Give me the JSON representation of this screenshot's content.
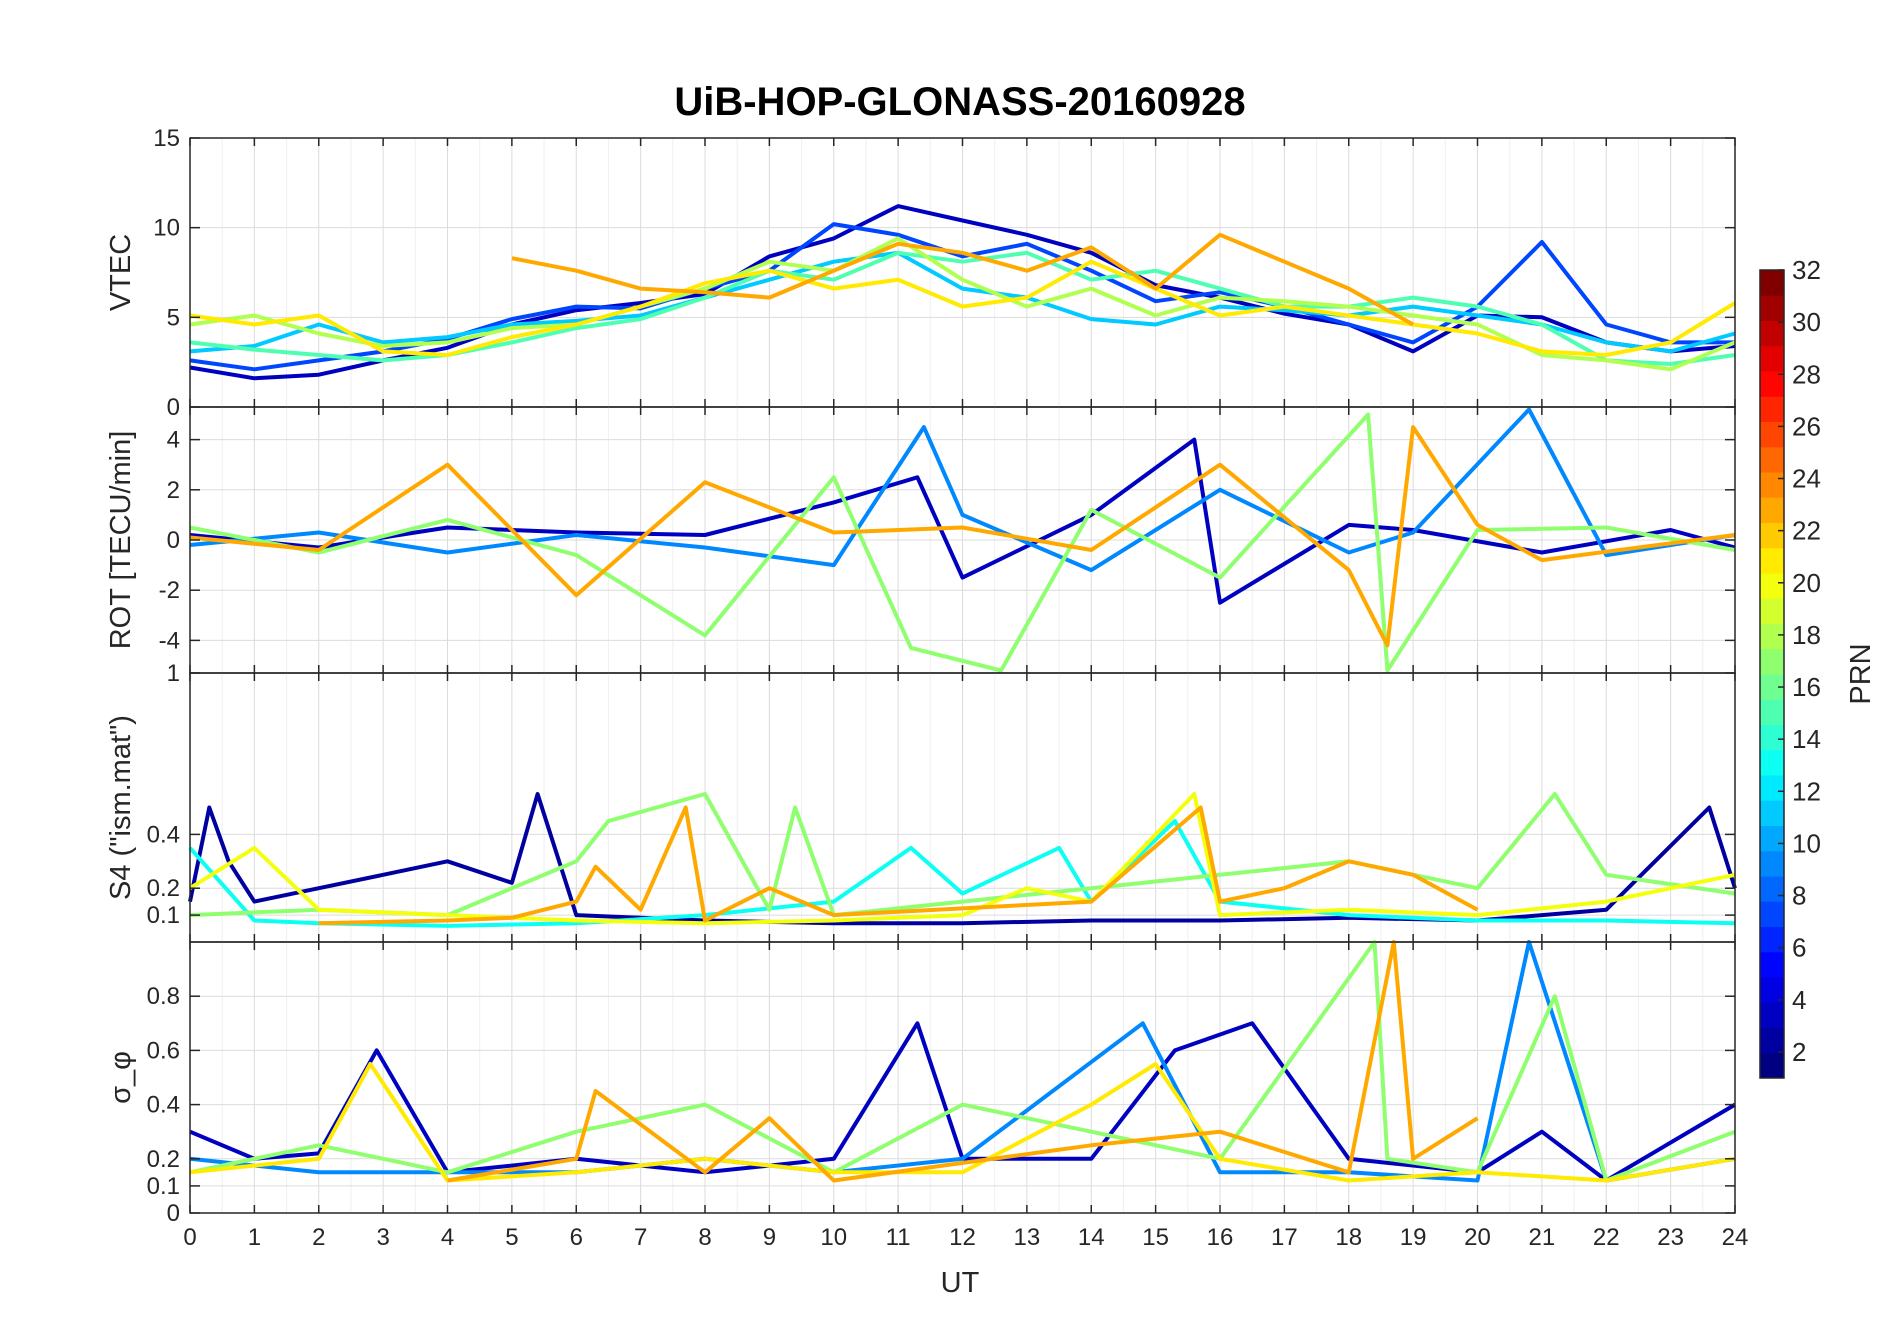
{
  "figure": {
    "title": "UiB-HOP-GLONASS-20160928",
    "xlabel": "UT",
    "xticks": [
      "0",
      "1",
      "2",
      "3",
      "4",
      "5",
      "6",
      "7",
      "8",
      "9",
      "10",
      "11",
      "12",
      "13",
      "14",
      "15",
      "16",
      "17",
      "18",
      "19",
      "20",
      "21",
      "22",
      "23",
      "24"
    ]
  },
  "colorbar": {
    "label": "PRN",
    "range": [
      1,
      32
    ],
    "ticks": [
      "2",
      "4",
      "6",
      "8",
      "10",
      "12",
      "14",
      "16",
      "18",
      "20",
      "22",
      "24",
      "26",
      "28",
      "30",
      "32"
    ],
    "colormap": "jet"
  },
  "chart_data": [
    {
      "type": "line",
      "ylabel": "VTEC",
      "xlim": [
        0,
        24
      ],
      "ylim": [
        0,
        15
      ],
      "yticks": [
        "0",
        "5",
        "10",
        "15"
      ],
      "grid": true,
      "note_series": "one trace per GLONASS PRN, colored by PRN",
      "series": [
        {
          "prn": 3,
          "x": [
            0,
            1,
            2,
            3,
            4,
            5,
            6,
            7,
            8,
            9,
            10,
            11,
            12,
            13,
            14,
            15,
            16,
            17,
            18,
            19,
            20,
            21,
            22,
            23,
            24
          ],
          "y": [
            2.2,
            1.6,
            1.8,
            2.6,
            3.3,
            4.6,
            5.4,
            5.8,
            6.3,
            8.4,
            9.4,
            11.2,
            10.4,
            9.6,
            8.6,
            6.8,
            6.1,
            5.2,
            4.6,
            3.1,
            5.1,
            5.0,
            3.6,
            3.1,
            3.4
          ]
        },
        {
          "prn": 7,
          "x": [
            0,
            1,
            2,
            3,
            4,
            5,
            6,
            7,
            8,
            9,
            10,
            11,
            12,
            13,
            14,
            15,
            16,
            17,
            18,
            19,
            20,
            21,
            22,
            23,
            24
          ],
          "y": [
            2.6,
            2.1,
            2.6,
            3.1,
            3.8,
            4.9,
            5.6,
            5.5,
            6.6,
            7.6,
            10.2,
            9.6,
            8.4,
            9.1,
            7.6,
            5.9,
            6.4,
            5.6,
            4.6,
            3.6,
            5.6,
            9.2,
            4.6,
            3.6,
            3.6
          ]
        },
        {
          "prn": 11,
          "x": [
            0,
            1,
            2,
            3,
            4,
            5,
            6,
            7,
            8,
            9,
            10,
            11,
            12,
            13,
            14,
            15,
            16,
            17,
            18,
            19,
            20,
            21,
            22,
            23,
            24
          ],
          "y": [
            3.1,
            3.4,
            4.6,
            3.6,
            3.9,
            4.6,
            4.8,
            5.1,
            6.1,
            7.1,
            8.1,
            8.6,
            6.6,
            6.1,
            4.9,
            4.6,
            5.6,
            5.4,
            5.1,
            5.6,
            5.1,
            4.6,
            3.6,
            3.1,
            4.1
          ]
        },
        {
          "prn": 15,
          "x": [
            0,
            1,
            2,
            3,
            4,
            5,
            6,
            7,
            8,
            9,
            10,
            11,
            12,
            13,
            14,
            15,
            16,
            17,
            18,
            19,
            20,
            21,
            22,
            23,
            24
          ],
          "y": [
            3.6,
            3.2,
            2.9,
            2.6,
            2.9,
            3.6,
            4.4,
            4.9,
            6.1,
            7.6,
            7.1,
            8.6,
            8.1,
            8.6,
            7.1,
            7.6,
            6.6,
            5.6,
            5.6,
            6.1,
            5.6,
            4.6,
            2.6,
            2.4,
            2.9
          ]
        },
        {
          "prn": 18,
          "x": [
            0,
            1,
            2,
            3,
            4,
            5,
            6,
            7,
            8,
            9,
            10,
            11,
            12,
            13,
            14,
            15,
            16,
            17,
            18,
            19,
            20,
            21,
            22,
            23,
            24
          ],
          "y": [
            4.6,
            5.1,
            4.1,
            3.4,
            3.6,
            4.4,
            4.6,
            5.6,
            6.6,
            8.1,
            7.6,
            9.4,
            7.1,
            5.6,
            6.6,
            5.1,
            6.1,
            5.9,
            5.6,
            5.1,
            4.6,
            2.9,
            2.6,
            2.1,
            3.6
          ]
        },
        {
          "prn": 21,
          "x": [
            0,
            1,
            2,
            3,
            4,
            5,
            6,
            7,
            8,
            9,
            10,
            11,
            12,
            13,
            14,
            15,
            16,
            17,
            18,
            19,
            20,
            21,
            22,
            23,
            24
          ],
          "y": [
            5.1,
            4.6,
            5.1,
            3.1,
            2.9,
            3.9,
            4.6,
            5.6,
            6.9,
            7.6,
            6.6,
            7.1,
            5.6,
            6.1,
            8.1,
            6.6,
            5.1,
            5.6,
            5.1,
            4.6,
            4.1,
            3.1,
            2.9,
            3.6,
            5.8
          ]
        },
        {
          "prn": 23,
          "x": [
            5,
            6,
            7,
            8,
            9,
            10,
            11,
            12,
            13,
            14,
            15,
            16,
            17,
            18,
            19
          ],
          "y": [
            8.3,
            7.6,
            6.6,
            6.4,
            6.1,
            7.6,
            9.1,
            8.6,
            7.6,
            8.9,
            6.6,
            9.6,
            8.1,
            6.6,
            4.6
          ]
        }
      ]
    },
    {
      "type": "line",
      "ylabel": "ROT [TECU/min]",
      "xlim": [
        0,
        24
      ],
      "ylim": [
        -5.3,
        5.3
      ],
      "yticks": [
        "-4",
        "-2",
        "0",
        "2",
        "4"
      ],
      "grid": true,
      "note_series": "rate of TEC, noisy traces around 0 per PRN",
      "series": [
        {
          "prn": 3,
          "x": [
            0,
            2,
            4,
            6,
            8,
            10,
            11.3,
            12,
            14,
            15.6,
            16,
            18,
            19,
            21,
            23,
            24
          ],
          "y": [
            0.2,
            -0.3,
            0.5,
            0.3,
            0.2,
            1.5,
            2.5,
            -1.5,
            1.0,
            4.0,
            -2.5,
            0.6,
            0.4,
            -0.5,
            0.4,
            -0.3
          ]
        },
        {
          "prn": 9,
          "x": [
            0,
            2,
            4,
            6,
            8,
            10,
            11.4,
            12,
            14,
            16,
            18,
            19,
            20.8,
            22,
            24
          ],
          "y": [
            -0.2,
            0.3,
            -0.5,
            0.2,
            -0.3,
            -1.0,
            4.5,
            1.0,
            -1.2,
            2.0,
            -0.5,
            0.3,
            5.2,
            -0.6,
            0.2
          ]
        },
        {
          "prn": 17,
          "x": [
            0,
            2,
            4,
            6,
            8,
            10,
            11.2,
            12.6,
            14,
            16,
            18.3,
            18.6,
            20,
            22,
            24
          ],
          "y": [
            0.5,
            -0.5,
            0.8,
            -0.6,
            -3.8,
            2.5,
            -4.3,
            -5.2,
            1.2,
            -1.5,
            5.0,
            -5.2,
            0.4,
            0.5,
            -0.4
          ]
        },
        {
          "prn": 23,
          "x": [
            0,
            2,
            4,
            6,
            8,
            10,
            12,
            14,
            16,
            18,
            18.6,
            19.0,
            20,
            21,
            24
          ],
          "y": [
            0.1,
            -0.4,
            3.0,
            -2.2,
            2.3,
            0.3,
            0.5,
            -0.4,
            3.0,
            -1.2,
            -4.2,
            4.5,
            0.6,
            -0.8,
            0.2
          ]
        }
      ]
    },
    {
      "type": "line",
      "ylabel": "S4 (\"ism.mat\")",
      "xlim": [
        0,
        24
      ],
      "ylim": [
        0,
        1
      ],
      "yticks": [
        "0.1",
        "0.2",
        "0.4",
        "1"
      ],
      "yscale": "nonlinear",
      "grid": true,
      "note_series": "amplitude scintillation index per PRN",
      "series": [
        {
          "prn": 2,
          "x": [
            0,
            0.3,
            0.6,
            1,
            2,
            3,
            4,
            5,
            5.4,
            6,
            8,
            10,
            12,
            14,
            16,
            18,
            20,
            22,
            23.6,
            24
          ],
          "y": [
            0.15,
            0.5,
            0.3,
            0.15,
            0.2,
            0.25,
            0.3,
            0.22,
            0.55,
            0.1,
            0.08,
            0.07,
            0.07,
            0.08,
            0.08,
            0.09,
            0.08,
            0.12,
            0.5,
            0.2
          ]
        },
        {
          "prn": 13,
          "x": [
            0,
            1,
            2,
            4,
            6,
            8,
            10,
            11.2,
            12,
            13.5,
            14,
            15.3,
            16,
            18,
            20,
            22,
            24
          ],
          "y": [
            0.35,
            0.08,
            0.07,
            0.06,
            0.07,
            0.1,
            0.15,
            0.35,
            0.18,
            0.35,
            0.15,
            0.45,
            0.15,
            0.1,
            0.08,
            0.08,
            0.07
          ]
        },
        {
          "prn": 17,
          "x": [
            0,
            2,
            4,
            6,
            6.5,
            8,
            9,
            9.4,
            10,
            12,
            14,
            16,
            18,
            20,
            21.2,
            22,
            24
          ],
          "y": [
            0.1,
            0.12,
            0.1,
            0.3,
            0.45,
            0.55,
            0.12,
            0.5,
            0.1,
            0.15,
            0.2,
            0.25,
            0.3,
            0.2,
            0.55,
            0.25,
            0.18
          ]
        },
        {
          "prn": 20,
          "x": [
            0,
            1,
            2,
            4,
            6,
            8,
            10,
            12,
            13,
            14,
            15.6,
            16,
            18,
            20,
            22,
            24
          ],
          "y": [
            0.2,
            0.35,
            0.12,
            0.1,
            0.08,
            0.07,
            0.08,
            0.1,
            0.2,
            0.15,
            0.55,
            0.1,
            0.12,
            0.1,
            0.15,
            0.25
          ]
        },
        {
          "prn": 23,
          "x": [
            2,
            4,
            5,
            6,
            6.3,
            7,
            7.7,
            8,
            9,
            10,
            14,
            15.7,
            16,
            17,
            18,
            19,
            20
          ],
          "y": [
            0.07,
            0.08,
            0.09,
            0.15,
            0.28,
            0.12,
            0.5,
            0.08,
            0.2,
            0.1,
            0.15,
            0.5,
            0.15,
            0.2,
            0.3,
            0.25,
            0.12
          ]
        }
      ]
    },
    {
      "type": "line",
      "ylabel": "σ_φ",
      "xlim": [
        0,
        24
      ],
      "ylim": [
        0,
        1
      ],
      "yticks": [
        "0",
        "0.1",
        "0.2",
        "0.4",
        "0.6",
        "0.8"
      ],
      "grid": true,
      "note_series": "phase scintillation index per PRN",
      "series": [
        {
          "prn": 3,
          "x": [
            0,
            1,
            2,
            2.9,
            4,
            6,
            8,
            10,
            11.3,
            12,
            14,
            15.3,
            16.5,
            18,
            20,
            21,
            22,
            24
          ],
          "y": [
            0.3,
            0.2,
            0.22,
            0.6,
            0.15,
            0.2,
            0.15,
            0.2,
            0.7,
            0.2,
            0.2,
            0.6,
            0.7,
            0.2,
            0.15,
            0.3,
            0.12,
            0.4
          ]
        },
        {
          "prn": 9,
          "x": [
            0,
            2,
            4,
            6,
            8,
            10,
            12,
            14.8,
            16,
            18,
            20,
            20.8,
            22,
            24
          ],
          "y": [
            0.2,
            0.15,
            0.15,
            0.15,
            0.2,
            0.15,
            0.2,
            0.7,
            0.15,
            0.15,
            0.12,
            1.0,
            0.12,
            0.2
          ]
        },
        {
          "prn": 17,
          "x": [
            0,
            2,
            4,
            6,
            8,
            10,
            12,
            14,
            16,
            18.4,
            18.6,
            20,
            21.2,
            22,
            24
          ],
          "y": [
            0.15,
            0.25,
            0.15,
            0.3,
            0.4,
            0.15,
            0.4,
            0.3,
            0.2,
            1.0,
            0.2,
            0.15,
            0.8,
            0.12,
            0.3
          ]
        },
        {
          "prn": 21,
          "x": [
            0,
            2,
            2.8,
            4,
            6,
            8,
            10,
            12,
            14,
            15,
            16,
            18,
            20,
            22,
            24
          ],
          "y": [
            0.15,
            0.2,
            0.55,
            0.12,
            0.15,
            0.2,
            0.15,
            0.15,
            0.4,
            0.55,
            0.2,
            0.12,
            0.15,
            0.12,
            0.2
          ]
        },
        {
          "prn": 23,
          "x": [
            4,
            6,
            6.3,
            8,
            9,
            10,
            14,
            16,
            18,
            18.7,
            19,
            20
          ],
          "y": [
            0.12,
            0.2,
            0.45,
            0.15,
            0.35,
            0.12,
            0.25,
            0.3,
            0.15,
            1.0,
            0.2,
            0.35
          ]
        }
      ]
    }
  ]
}
